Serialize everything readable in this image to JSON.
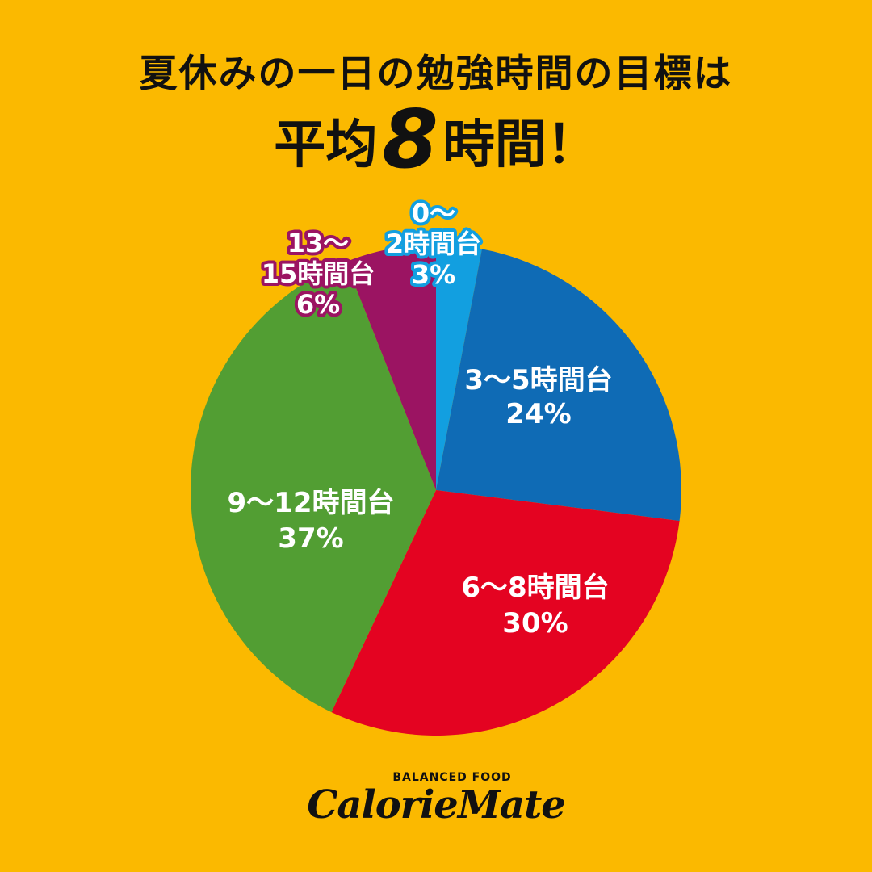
{
  "header": {
    "title_line1": "夏休みの一日の勉強時間の目標は",
    "title_prefix": "平均",
    "title_number": "8",
    "title_suffix": "時間！"
  },
  "chart_data": {
    "type": "pie",
    "title": "夏休みの一日の勉強時間の目標は 平均8時間！",
    "slices": [
      {
        "label_lines": [
          "0〜",
          "2時間台",
          "3%"
        ],
        "value": 3,
        "color": "#129FE0",
        "label_style": "outlined",
        "outline": "#129FE0"
      },
      {
        "label_lines": [
          "3〜5時間台",
          "24%"
        ],
        "value": 24,
        "color": "#0F6BB5",
        "label_style": "inside"
      },
      {
        "label_lines": [
          "6〜8時間台",
          "30%"
        ],
        "value": 30,
        "color": "#E40321",
        "label_style": "inside"
      },
      {
        "label_lines": [
          "9〜12時間台",
          "37%"
        ],
        "value": 37,
        "color": "#529E33",
        "label_style": "inside"
      },
      {
        "label_lines": [
          "13〜",
          "15時間台",
          "6%"
        ],
        "value": 6,
        "color": "#9B1462",
        "label_style": "outlined",
        "outline": "#9B1462"
      }
    ]
  },
  "logo": {
    "tagline": "BALANCED FOOD",
    "brand": "CalorieMate"
  }
}
